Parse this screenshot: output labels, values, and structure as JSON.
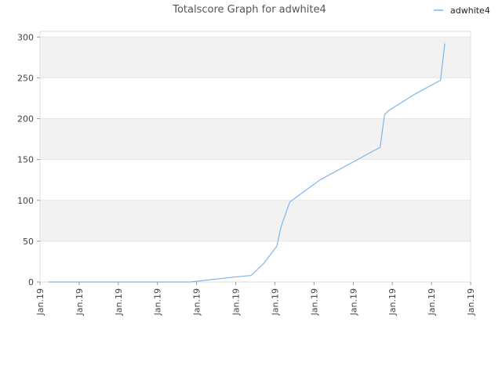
{
  "chart_data": {
    "type": "line",
    "title": "Totalscore Graph for adwhite4",
    "xlabel": "",
    "ylabel": "",
    "ylim": [
      0,
      307
    ],
    "y_ticks": [
      0,
      50,
      100,
      150,
      200,
      250,
      300
    ],
    "x_tick_labels": [
      "Jan.19",
      "Jan.19",
      "Jan.19",
      "Jan.19",
      "Jan.19",
      "Jan.19",
      "Jan.19",
      "Jan.19",
      "Jan.19",
      "Jan.19",
      "Jan.19",
      "Jan.19"
    ],
    "grid": "horizontal alternating bands",
    "legend_position": "top-right",
    "series": [
      {
        "name": "adwhite4",
        "color": "#7cb5ec",
        "x": [
          0.02,
          0.35,
          0.45,
          0.49,
          0.52,
          0.55,
          0.56,
          0.58,
          0.65,
          0.72,
          0.79,
          0.8,
          0.81,
          0.87,
          0.93,
          0.94
        ],
        "values": [
          0,
          0,
          6,
          8,
          23,
          44,
          68,
          98,
          125,
          145,
          165,
          205,
          210,
          230,
          247,
          292
        ]
      }
    ]
  }
}
